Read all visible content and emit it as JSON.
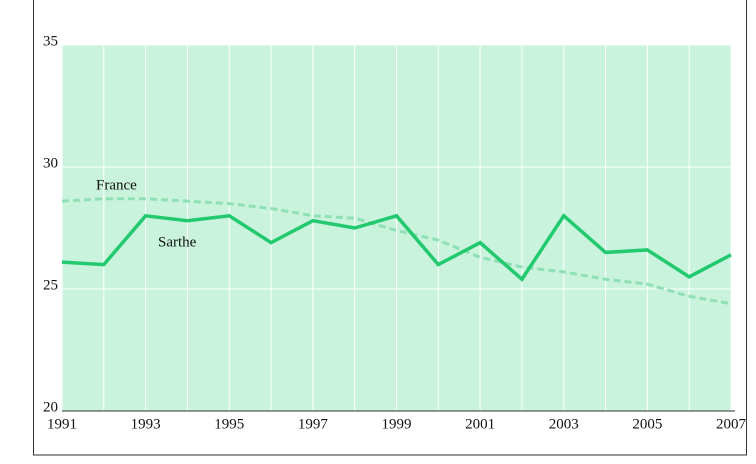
{
  "chart_data": {
    "type": "line",
    "x": [
      1991,
      1992,
      1993,
      1994,
      1995,
      1996,
      1997,
      1998,
      1999,
      2000,
      2001,
      2002,
      2003,
      2004,
      2005,
      2006,
      2007
    ],
    "series": [
      {
        "name": "France",
        "color": "#8fe0b4",
        "dashed": true,
        "values": [
          28.6,
          28.7,
          28.7,
          28.6,
          28.5,
          28.3,
          28.0,
          27.9,
          27.4,
          27.0,
          26.3,
          25.9,
          25.7,
          25.4,
          25.2,
          24.7,
          24.4
        ]
      },
      {
        "name": "Sarthe",
        "color": "#22c96e",
        "dashed": false,
        "values": [
          26.1,
          26.0,
          28.0,
          27.8,
          28.0,
          26.9,
          27.8,
          27.5,
          28.0,
          26.0,
          26.9,
          25.4,
          28.0,
          26.5,
          26.6,
          25.5,
          26.4
        ]
      }
    ],
    "xlim": [
      1991,
      2007
    ],
    "xticks": [
      1991,
      1993,
      1995,
      1997,
      1999,
      2001,
      2003,
      2005,
      2007
    ],
    "ylim": [
      20,
      35
    ],
    "yticks": [
      20,
      25,
      30,
      35
    ],
    "grid": true,
    "background": "#c9f3dd"
  }
}
